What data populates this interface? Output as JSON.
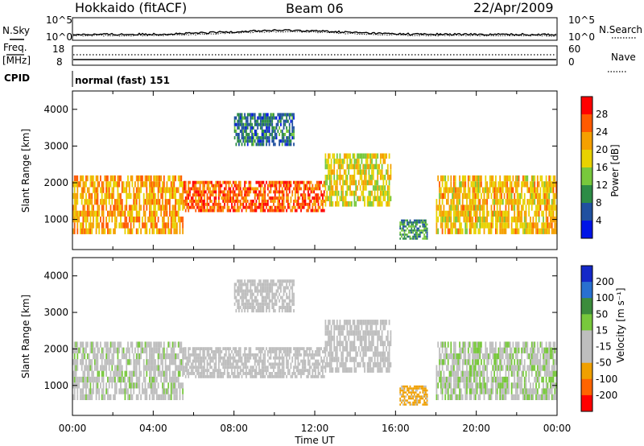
{
  "header": {
    "station": "Hokkaido (fitACF)",
    "beam": "Beam 06",
    "date": "22/Apr/2009"
  },
  "noise_panel": {
    "left_label": "N.Sky",
    "right_label": "N.Search",
    "left_ticks": [
      "10^5",
      "10^0"
    ],
    "right_ticks": [
      "10^5",
      "10^0"
    ]
  },
  "freq_panel": {
    "left_label_top": "Freq.",
    "left_label_unit": "[MHz]",
    "right_label": "Nave",
    "left_ticks": [
      "18",
      "8"
    ],
    "right_ticks": [
      "60",
      "0"
    ]
  },
  "cpid_panel": {
    "label": "CPID",
    "text": "normal (fast) 151"
  },
  "power_panel": {
    "ylabel": "Slant Range [km]",
    "colorbar_label": "Power [dB]",
    "colorbar_ticks": [
      "28",
      "24",
      "20",
      "16",
      "12",
      "8",
      "4"
    ]
  },
  "velocity_panel": {
    "ylabel": "Slant Range [km]",
    "colorbar_label": "Velocity [m s⁻¹]",
    "colorbar_ticks": [
      "200",
      "100",
      "50",
      "15",
      "-15",
      "-50",
      "-100",
      "-200"
    ]
  },
  "x_axis": {
    "label": "Time UT",
    "ticks": [
      "00:00",
      "04:00",
      "08:00",
      "12:00",
      "16:00",
      "20:00",
      "00:00"
    ]
  },
  "colors": {
    "power_scale": [
      "#ff0000",
      "#ff5a00",
      "#f5a000",
      "#e8d200",
      "#78c83c",
      "#2d8c46",
      "#2050a0",
      "#0014e6"
    ],
    "velocity_scale": [
      "#1428c8",
      "#2870d0",
      "#3c8c3c",
      "#78c83c",
      "#bebebe",
      "#bebebe",
      "#f0a000",
      "#ff6400",
      "#ff0000"
    ]
  },
  "chart_data": {
    "type": "heatmap",
    "x_range_hours": [
      0,
      24
    ],
    "y_range_km": [
      180,
      4500
    ],
    "y_ticks_km": [
      1000,
      2000,
      3000,
      4000
    ],
    "power_dB_range": [
      0,
      32
    ],
    "velocity_range": [
      -250,
      250
    ],
    "echo_regions": [
      {
        "t0": 0.0,
        "t1": 5.5,
        "r0": 600,
        "r1": 2200,
        "power": 22,
        "velocity": 5
      },
      {
        "t0": 5.5,
        "t1": 12.5,
        "r0": 1200,
        "r1": 2050,
        "power": 26,
        "velocity": 0
      },
      {
        "t0": 12.5,
        "t1": 15.8,
        "r0": 1350,
        "r1": 2800,
        "power": 18,
        "velocity": -10
      },
      {
        "t0": 16.2,
        "t1": 17.6,
        "r0": 450,
        "r1": 1000,
        "power": 10,
        "velocity": -60
      },
      {
        "t0": 18.0,
        "t1": 24.0,
        "r0": 600,
        "r1": 2200,
        "power": 20,
        "velocity": 10
      },
      {
        "t0": 8.0,
        "t1": 11.0,
        "r0": 3000,
        "r1": 3900,
        "power": 8,
        "velocity": 0
      }
    ]
  }
}
